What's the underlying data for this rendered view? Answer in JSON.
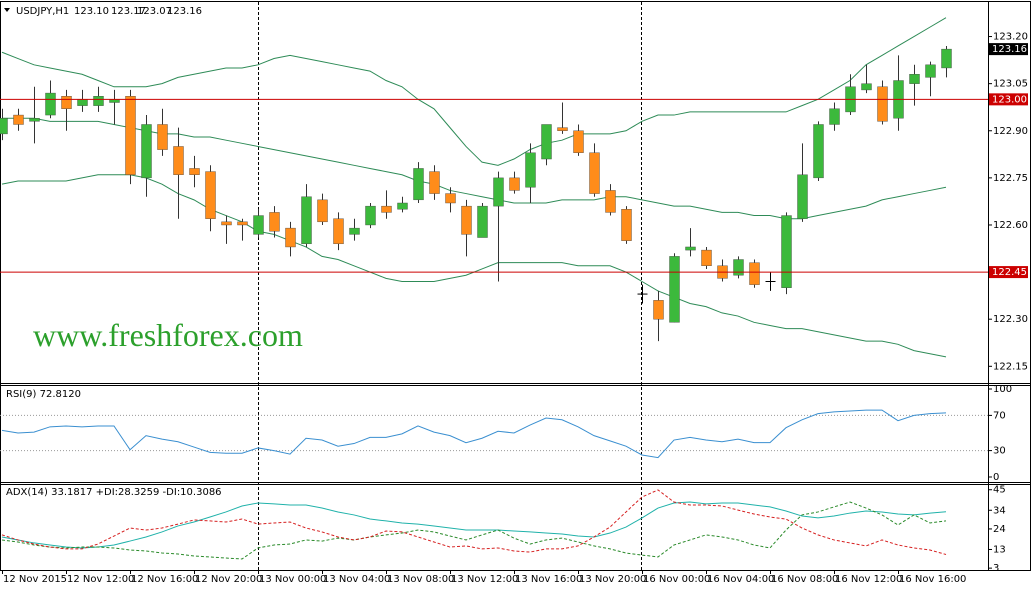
{
  "chart_data": [
    {
      "type": "candlestick",
      "title": "USDJPY,H1",
      "ohlc_header": [
        "123.10",
        "123.17",
        "123.07",
        "123.16"
      ],
      "watermark": "www.freshforex.com",
      "categories": [
        "12 Nov 2015",
        null,
        null,
        null,
        "12 Nov 12:00",
        null,
        null,
        null,
        "12 Nov 16:00",
        null,
        null,
        null,
        "12 Nov 20:00",
        null,
        null,
        null,
        "13 Nov 00:00",
        null,
        null,
        null,
        "13 Nov 04:00",
        null,
        null,
        null,
        "13 Nov 08:00",
        null,
        null,
        null,
        "13 Nov 12:00",
        null,
        null,
        null,
        "13 Nov 16:00",
        null,
        null,
        null,
        "13 Nov 20:00",
        null,
        null,
        null,
        "16 Nov 00:00",
        null,
        null,
        null,
        "16 Nov 04:00",
        null,
        null,
        null,
        "16 Nov 08:00",
        null,
        null,
        null,
        "16 Nov 12:00",
        null,
        null,
        null,
        "16 Nov 16:00",
        null,
        null,
        null
      ],
      "open": [
        122.89,
        122.95,
        122.93,
        122.95,
        123.01,
        122.98,
        122.98,
        122.99,
        123.01,
        122.75,
        122.92,
        122.85,
        122.78,
        122.77,
        122.61,
        122.61,
        122.57,
        122.64,
        122.59,
        122.54,
        122.68,
        122.62,
        122.57,
        122.6,
        122.66,
        122.65,
        122.68,
        122.77,
        122.7,
        122.66,
        122.56,
        122.66,
        122.75,
        122.72,
        122.81,
        122.91,
        122.9,
        122.83,
        122.71,
        122.65,
        122.38,
        122.36,
        122.29,
        122.52,
        122.52,
        122.47,
        122.44,
        122.48,
        122.42,
        122.4,
        122.62,
        122.75,
        122.92,
        122.96,
        123.03,
        123.04,
        122.94,
        123.05,
        123.07,
        123.1
      ],
      "high": [
        122.97,
        122.97,
        123.04,
        123.06,
        123.03,
        123.03,
        123.04,
        123.03,
        123.03,
        122.95,
        122.97,
        122.91,
        122.82,
        122.79,
        122.63,
        122.62,
        122.65,
        122.66,
        122.61,
        122.73,
        122.7,
        122.64,
        122.62,
        122.67,
        122.71,
        122.69,
        122.8,
        122.79,
        122.72,
        122.68,
        122.67,
        122.77,
        122.77,
        122.86,
        122.92,
        122.99,
        122.92,
        122.86,
        122.73,
        122.66,
        122.41,
        122.39,
        122.51,
        122.59,
        122.53,
        122.49,
        122.5,
        122.49,
        122.45,
        122.64,
        122.86,
        122.93,
        122.99,
        123.08,
        123.11,
        123.06,
        123.14,
        123.11,
        123.12,
        123.17
      ],
      "low": [
        122.87,
        122.9,
        122.86,
        122.94,
        122.9,
        122.96,
        122.96,
        122.92,
        122.73,
        122.69,
        122.82,
        122.62,
        122.72,
        122.58,
        122.54,
        122.55,
        122.56,
        122.56,
        122.5,
        122.53,
        122.6,
        122.52,
        122.55,
        122.59,
        122.62,
        122.64,
        122.67,
        122.68,
        122.64,
        122.5,
        122.56,
        122.42,
        122.7,
        122.67,
        122.79,
        122.89,
        122.82,
        122.69,
        122.63,
        122.54,
        122.35,
        122.23,
        122.29,
        122.5,
        122.46,
        122.42,
        122.43,
        122.4,
        122.39,
        122.38,
        122.61,
        122.74,
        122.9,
        122.95,
        123.02,
        122.92,
        122.9,
        122.98,
        123.01,
        123.07
      ],
      "close": [
        122.94,
        122.92,
        122.94,
        123.02,
        122.97,
        123.0,
        123.01,
        123.0,
        122.76,
        122.92,
        122.84,
        122.76,
        122.76,
        122.62,
        122.6,
        122.6,
        122.63,
        122.58,
        122.53,
        122.69,
        122.61,
        122.54,
        122.59,
        122.66,
        122.64,
        122.67,
        122.78,
        122.7,
        122.67,
        122.57,
        122.66,
        122.75,
        122.71,
        122.83,
        122.92,
        122.9,
        122.83,
        122.7,
        122.64,
        122.55,
        122.38,
        122.3,
        122.5,
        122.53,
        122.47,
        122.43,
        122.49,
        122.41,
        122.42,
        122.63,
        122.76,
        122.92,
        122.97,
        123.04,
        123.05,
        122.93,
        123.06,
        123.08,
        123.11,
        123.16
      ],
      "up_color": "#3cb93c",
      "down_color": "#ff8c1a",
      "doji_color": "#000000",
      "series": [
        {
          "color": "#2e8b57",
          "values": [
            123.15,
            123.13,
            123.11,
            123.1,
            123.09,
            123.08,
            123.06,
            123.04,
            123.04,
            123.04,
            123.05,
            123.07,
            123.08,
            123.09,
            123.1,
            123.1,
            123.11,
            123.13,
            123.14,
            123.13,
            123.12,
            123.11,
            123.1,
            123.09,
            123.06,
            123.04,
            123.0,
            122.97,
            122.91,
            122.85,
            122.8,
            122.79,
            122.81,
            122.84,
            122.86,
            122.87,
            122.89,
            122.89,
            122.89,
            122.9,
            122.93,
            122.95,
            122.95,
            122.96,
            122.96,
            122.96,
            122.96,
            122.96,
            122.96,
            122.96,
            122.98,
            123.0,
            123.03,
            123.06,
            123.11,
            123.14,
            123.17,
            123.2,
            123.23,
            123.26
          ]
        },
        {
          "color": "#2e8b57",
          "values": [
            122.94,
            122.94,
            122.94,
            122.93,
            122.93,
            122.93,
            122.93,
            122.92,
            122.91,
            122.9,
            122.89,
            122.89,
            122.88,
            122.88,
            122.87,
            122.86,
            122.85,
            122.84,
            122.83,
            122.82,
            122.81,
            122.8,
            122.79,
            122.78,
            122.77,
            122.76,
            122.74,
            122.73,
            122.71,
            122.7,
            122.69,
            122.68,
            122.67,
            122.67,
            122.67,
            122.68,
            122.68,
            122.68,
            122.69,
            122.69,
            122.68,
            122.67,
            122.66,
            122.66,
            122.65,
            122.64,
            122.64,
            122.63,
            122.63,
            122.62,
            122.62,
            122.63,
            122.64,
            122.65,
            122.66,
            122.68,
            122.69,
            122.7,
            122.71,
            122.72
          ]
        },
        {
          "color": "#2e8b57",
          "values": [
            122.73,
            122.74,
            122.74,
            122.74,
            122.74,
            122.75,
            122.76,
            122.76,
            122.76,
            122.75,
            122.73,
            122.7,
            122.68,
            122.65,
            122.63,
            122.61,
            122.58,
            122.57,
            122.55,
            122.53,
            122.5,
            122.49,
            122.47,
            122.45,
            122.43,
            122.42,
            122.42,
            122.42,
            122.43,
            122.44,
            122.46,
            122.48,
            122.48,
            122.48,
            122.48,
            122.48,
            122.47,
            122.47,
            122.47,
            122.45,
            122.42,
            122.39,
            122.37,
            122.35,
            122.34,
            122.32,
            122.31,
            122.29,
            122.28,
            122.27,
            122.27,
            122.26,
            122.25,
            122.24,
            122.23,
            122.23,
            122.22,
            122.2,
            122.19,
            122.18
          ]
        }
      ],
      "ylim": [
        122.1,
        123.31
      ],
      "yticks": [
        {
          "value": 123.2,
          "label": "123.20"
        },
        123.05,
        {
          "value": 122.9,
          "label": "122.90"
        },
        122.75,
        {
          "value": 122.6,
          "label": "122.60"
        },
        {
          "value": 122.3,
          "label": "122.30"
        },
        122.15
      ],
      "hlines": [
        {
          "value": 123,
          "label": "123.00",
          "color": "#cc0000"
        },
        {
          "value": 122.45,
          "label": "122.45",
          "color": "#cc0000"
        }
      ],
      "last_price": 123.16
    },
    {
      "type": "line",
      "title": "RSI(9) 72.8120",
      "series": [
        {
          "color": "#3a8fd0",
          "values": [
            53,
            50,
            51,
            57,
            58,
            57,
            58,
            58,
            31,
            47,
            43,
            40,
            34,
            28,
            27,
            27,
            33,
            30,
            26,
            44,
            42,
            35,
            38,
            45,
            45,
            49,
            58,
            51,
            47,
            39,
            44,
            52,
            50,
            59,
            67,
            65,
            57,
            47,
            41,
            35,
            25,
            22,
            42,
            45,
            42,
            40,
            43,
            39,
            39,
            56,
            65,
            72,
            74,
            75,
            76,
            76,
            64,
            70,
            72,
            72.81
          ]
        }
      ],
      "ylim": [
        -5.7,
        103.4
      ],
      "yticks": [
        100,
        70,
        30,
        0
      ],
      "levels": [
        70,
        30
      ]
    },
    {
      "type": "line",
      "title": "ADX(14) 33.1817 +DI:28.3259 -DI:10.3086",
      "series": [
        {
          "color": "#20b2aa",
          "style": "solid",
          "values": [
            19.7,
            18.1,
            16.5,
            15.4,
            14.3,
            13.8,
            14.3,
            15.4,
            17.5,
            19.7,
            22.4,
            25.6,
            27.7,
            30.4,
            33.1,
            36.3,
            37.9,
            37.4,
            36.8,
            36.8,
            35.2,
            33.1,
            31.5,
            29.3,
            28.3,
            27.2,
            26.6,
            25.6,
            24.5,
            23.4,
            23.4,
            23.4,
            22.9,
            22.4,
            21.8,
            21.3,
            20.2,
            19.7,
            21.8,
            25.0,
            29.9,
            35.2,
            37.9,
            38.4,
            37.4,
            37.9,
            37.9,
            36.8,
            35.8,
            33.6,
            30.9,
            29.9,
            30.9,
            32.5,
            33.6,
            33.1,
            32.0,
            31.5,
            32.5,
            33.18
          ]
        },
        {
          "color": "#2a8a2a",
          "style": "dashed",
          "values": [
            18.1,
            17.0,
            15.4,
            14.3,
            13.8,
            14.3,
            14.3,
            13.8,
            12.7,
            12.2,
            11.1,
            10.6,
            9.5,
            9.0,
            8.4,
            7.9,
            13.8,
            15.4,
            15.9,
            18.1,
            17.5,
            19.1,
            18.1,
            19.7,
            20.8,
            21.8,
            23.4,
            22.4,
            20.2,
            18.1,
            20.8,
            23.4,
            19.1,
            15.9,
            18.1,
            19.1,
            17.0,
            14.9,
            13.3,
            11.1,
            10.0,
            9.0,
            15.4,
            18.1,
            20.8,
            19.7,
            18.1,
            15.4,
            13.8,
            23.4,
            31.5,
            33.1,
            35.8,
            38.4,
            35.2,
            31.5,
            26.1,
            31.5,
            27.2,
            28.33
          ]
        },
        {
          "color": "#d62020",
          "style": "dashed",
          "values": [
            20.8,
            18.1,
            15.9,
            14.3,
            13.3,
            13.3,
            15.9,
            20.2,
            24.5,
            23.4,
            24.5,
            26.6,
            28.8,
            28.3,
            27.7,
            29.3,
            26.6,
            27.2,
            27.7,
            24.5,
            22.4,
            19.7,
            18.1,
            19.7,
            22.9,
            22.4,
            19.7,
            17.0,
            14.3,
            14.9,
            13.3,
            13.8,
            12.2,
            11.6,
            13.3,
            13.3,
            14.9,
            19.7,
            25.0,
            33.1,
            41.1,
            44.9,
            38.4,
            36.8,
            36.8,
            36.3,
            34.1,
            32.0,
            30.4,
            29.3,
            24.5,
            20.8,
            18.1,
            16.5,
            14.9,
            18.1,
            15.4,
            13.8,
            12.7,
            10.31
          ]
        }
      ],
      "ylim": [
        2,
        47
      ],
      "yticks": [
        45,
        34,
        24,
        13,
        3
      ]
    }
  ]
}
